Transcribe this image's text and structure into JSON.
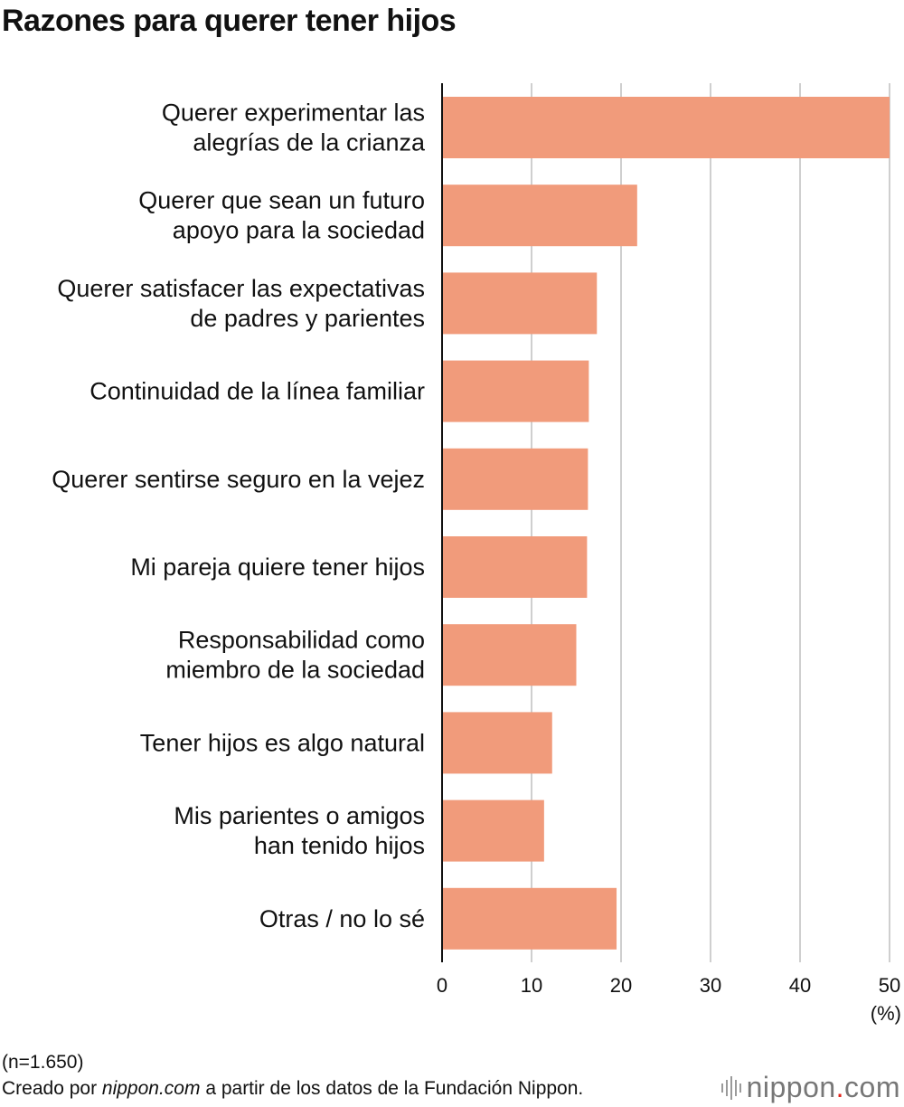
{
  "chart_data": {
    "type": "bar",
    "orientation": "horizontal",
    "title": "Razones para querer tener hijos",
    "categories": [
      [
        "Querer experimentar las",
        "alegrías de la crianza"
      ],
      [
        "Querer que sean un futuro",
        "apoyo para la sociedad"
      ],
      [
        "Querer satisfacer las expectativas",
        "de padres y parientes"
      ],
      [
        "Continuidad de la línea familiar"
      ],
      [
        "Querer sentirse seguro en la vejez"
      ],
      [
        "Mi pareja quiere tener hijos"
      ],
      [
        "Responsabilidad como",
        "miembro de la sociedad"
      ],
      [
        "Tener hijos es algo natural"
      ],
      [
        "Mis parientes o amigos",
        "han tenido hijos"
      ],
      [
        "Otras / no lo sé"
      ]
    ],
    "values": [
      50.0,
      21.8,
      17.3,
      16.4,
      16.3,
      16.2,
      15.0,
      12.3,
      11.4,
      19.5
    ],
    "xlim": [
      0,
      50
    ],
    "xticks": [
      0,
      10,
      20,
      30,
      40,
      50
    ],
    "xlabel": "(%)",
    "grid": true,
    "bar_color": "#f19b7b"
  },
  "footer": {
    "note": "(n=1.650)",
    "credit_prefix": "Creado por ",
    "credit_site": "nippon.com",
    "credit_suffix": " a partir de los datos de la Fundación Nippon.",
    "logo_main": "nippon",
    "logo_dot": ".",
    "logo_tld": "com"
  }
}
